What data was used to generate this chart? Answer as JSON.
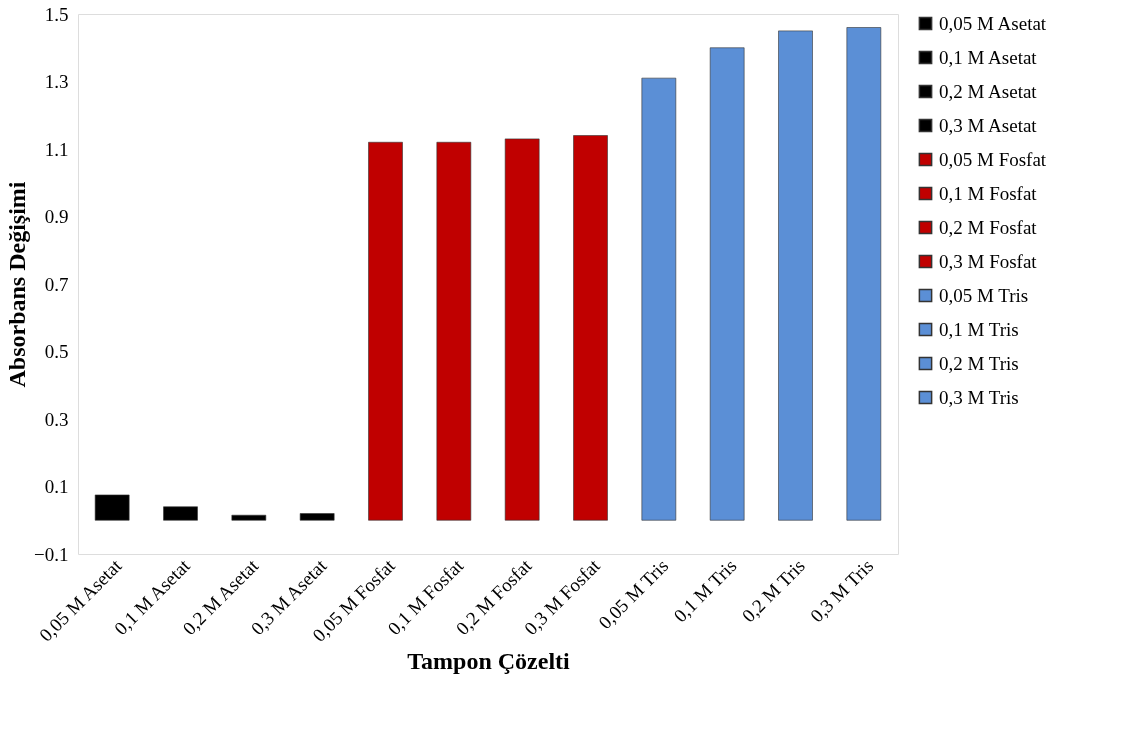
{
  "chart_data": {
    "type": "bar",
    "xlabel": "Tampon Çözelti",
    "ylabel": "Absorbans Değişimi",
    "categories": [
      "0,05 M Asetat",
      "0,1 M Asetat",
      "0,2 M Asetat",
      "0,3 M Asetat",
      "0,05 M Fosfat",
      "0,1 M Fosfat",
      "0,2 M Fosfat",
      "0,3 M Fosfat",
      "0,05 M Tris",
      "0,1 M Tris",
      "0,2 M Tris",
      "0,3 M Tris"
    ],
    "series": [
      {
        "name": "0,05 M Asetat",
        "color": "#000000",
        "values": [
          0.075,
          null,
          null,
          null,
          null,
          null,
          null,
          null,
          null,
          null,
          null,
          null
        ]
      },
      {
        "name": "0,1 M Asetat",
        "color": "#000000",
        "values": [
          null,
          0.04,
          null,
          null,
          null,
          null,
          null,
          null,
          null,
          null,
          null,
          null
        ]
      },
      {
        "name": "0,2 M Asetat",
        "color": "#000000",
        "values": [
          null,
          null,
          0.015,
          null,
          null,
          null,
          null,
          null,
          null,
          null,
          null,
          null
        ]
      },
      {
        "name": "0,3 M Asetat",
        "color": "#000000",
        "values": [
          null,
          null,
          null,
          0.02,
          null,
          null,
          null,
          null,
          null,
          null,
          null,
          null
        ]
      },
      {
        "name": "0,05 M Fosfat",
        "color": "#c00000",
        "values": [
          null,
          null,
          null,
          null,
          1.12,
          null,
          null,
          null,
          null,
          null,
          null,
          null
        ]
      },
      {
        "name": "0,1 M Fosfat",
        "color": "#c00000",
        "values": [
          null,
          null,
          null,
          null,
          null,
          1.12,
          null,
          null,
          null,
          null,
          null,
          null
        ]
      },
      {
        "name": "0,2 M Fosfat",
        "color": "#c00000",
        "values": [
          null,
          null,
          null,
          null,
          null,
          null,
          1.13,
          null,
          null,
          null,
          null,
          null
        ]
      },
      {
        "name": "0,3 M Fosfat",
        "color": "#c00000",
        "values": [
          null,
          null,
          null,
          null,
          null,
          null,
          null,
          1.14,
          null,
          null,
          null,
          null
        ]
      },
      {
        "name": "0,05 M Tris",
        "color": "#5b8fd6",
        "values": [
          null,
          null,
          null,
          null,
          null,
          null,
          null,
          null,
          1.31,
          null,
          null,
          null
        ]
      },
      {
        "name": "0,1 M Tris",
        "color": "#5b8fd6",
        "values": [
          null,
          null,
          null,
          null,
          null,
          null,
          null,
          null,
          null,
          1.4,
          null,
          null
        ]
      },
      {
        "name": "0,2 M Tris",
        "color": "#5b8fd6",
        "values": [
          null,
          null,
          null,
          null,
          null,
          null,
          null,
          null,
          null,
          null,
          1.45,
          null
        ]
      },
      {
        "name": "0,3 M Tris",
        "color": "#5b8fd6",
        "values": [
          null,
          null,
          null,
          null,
          null,
          null,
          null,
          null,
          null,
          null,
          null,
          1.46
        ]
      }
    ],
    "ylim": [
      -0.1,
      1.5
    ],
    "yticks": [
      -0.1,
      0.1,
      0.3,
      0.5,
      0.7,
      0.9,
      1.1,
      1.3,
      1.5
    ],
    "grid": false,
    "legend": "right"
  }
}
